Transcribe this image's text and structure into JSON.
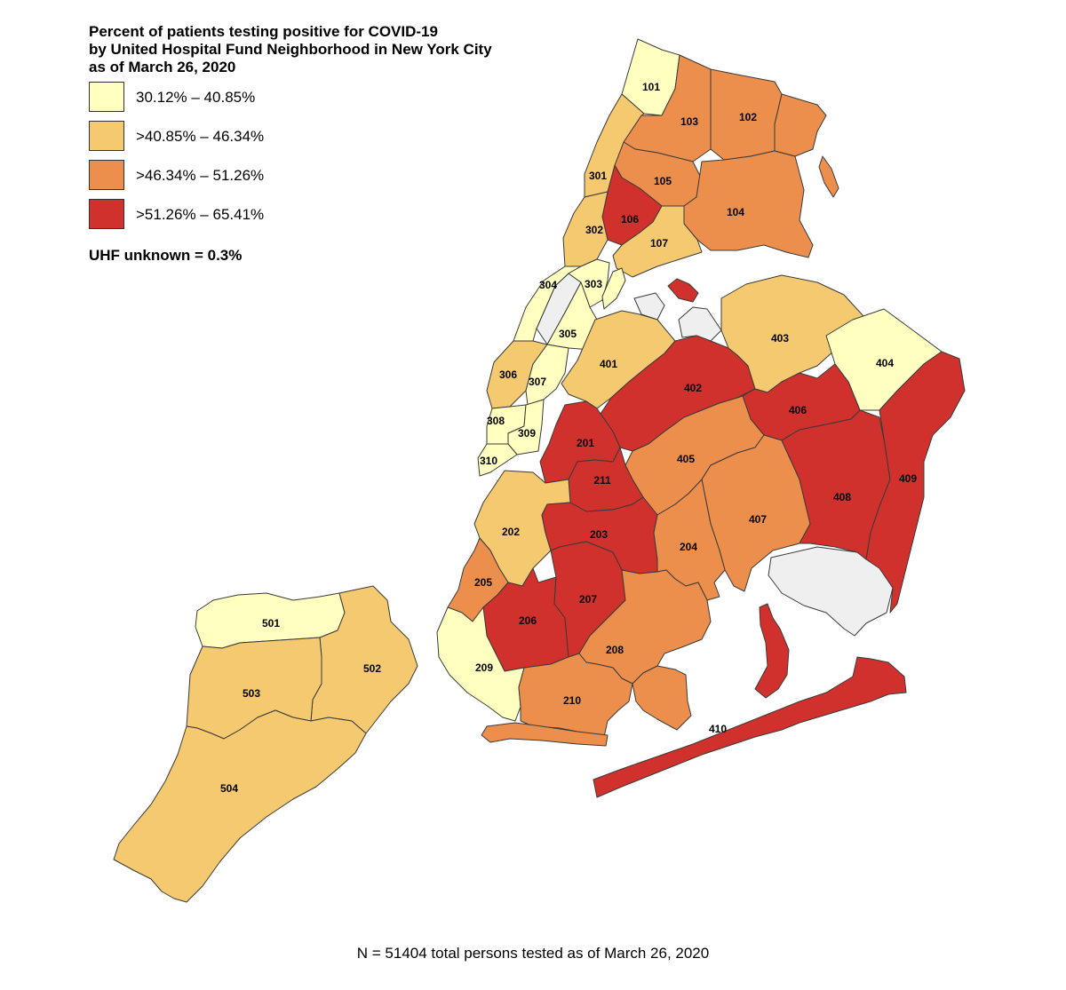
{
  "title": "Percent of patients testing positive for COVID-19\nby United Hospital Fund Neighborhood in New York City\nas of March 26, 2020",
  "legend": [
    {
      "label": "30.12% – 40.85%",
      "color": "#ffffc0"
    },
    {
      "label": ">40.85% – 46.34%",
      "color": "#f4c96f"
    },
    {
      "label": ">46.34% – 51.26%",
      "color": "#ec8f4c"
    },
    {
      "label": ">51.26% – 65.41%",
      "color": "#d0312c"
    }
  ],
  "no_data_color": "#efefef",
  "uhf_unknown": "UHF unknown = 0.3%",
  "footer": "N = 51404 total persons tested as of March 26, 2020",
  "regions": [
    {
      "id": "101",
      "class": 0
    },
    {
      "id": "102",
      "class": 2
    },
    {
      "id": "103",
      "class": 2
    },
    {
      "id": "104",
      "class": 2
    },
    {
      "id": "105",
      "class": 2
    },
    {
      "id": "106",
      "class": 3
    },
    {
      "id": "107",
      "class": 1
    },
    {
      "id": "201",
      "class": 3
    },
    {
      "id": "202",
      "class": 1
    },
    {
      "id": "203",
      "class": 3
    },
    {
      "id": "204",
      "class": 2
    },
    {
      "id": "205",
      "class": 2
    },
    {
      "id": "206",
      "class": 3
    },
    {
      "id": "207",
      "class": 3
    },
    {
      "id": "208",
      "class": 2
    },
    {
      "id": "209",
      "class": 0
    },
    {
      "id": "210",
      "class": 2
    },
    {
      "id": "211",
      "class": 3
    },
    {
      "id": "301",
      "class": 1
    },
    {
      "id": "302",
      "class": 1
    },
    {
      "id": "303",
      "class": 0
    },
    {
      "id": "304",
      "class": 0
    },
    {
      "id": "305",
      "class": 0
    },
    {
      "id": "306",
      "class": 1
    },
    {
      "id": "307",
      "class": 0
    },
    {
      "id": "308",
      "class": 0
    },
    {
      "id": "309",
      "class": 0
    },
    {
      "id": "310",
      "class": 0
    },
    {
      "id": "401",
      "class": 1
    },
    {
      "id": "402",
      "class": 3
    },
    {
      "id": "403",
      "class": 1
    },
    {
      "id": "404",
      "class": 0
    },
    {
      "id": "405",
      "class": 2
    },
    {
      "id": "406",
      "class": 3
    },
    {
      "id": "407",
      "class": 2
    },
    {
      "id": "408",
      "class": 3
    },
    {
      "id": "409",
      "class": 3
    },
    {
      "id": "410",
      "class": 3
    },
    {
      "id": "501",
      "class": 0
    },
    {
      "id": "502",
      "class": 1
    },
    {
      "id": "503",
      "class": 1
    },
    {
      "id": "504",
      "class": 1
    }
  ]
}
